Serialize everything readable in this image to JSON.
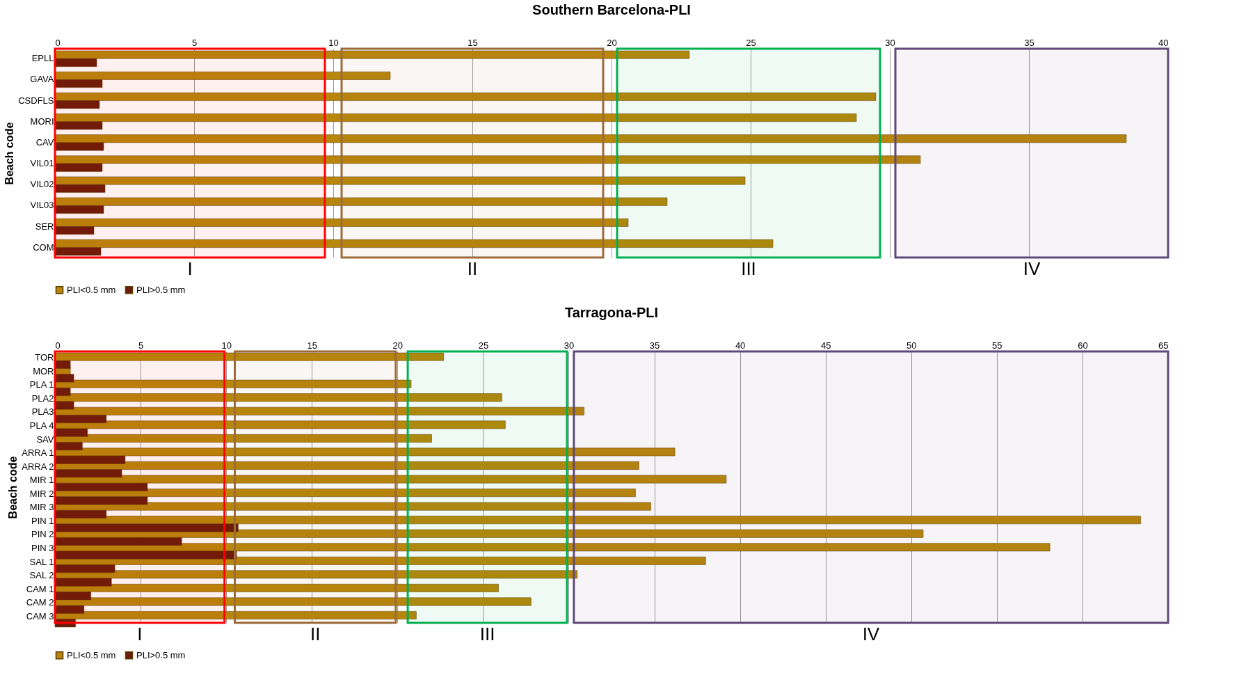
{
  "chart_data": [
    {
      "type": "bar",
      "orientation": "horizontal",
      "title": "Southern Barcelona-PLI",
      "ylabel": "Beach code",
      "categories": [
        "EPLL",
        "GAVA",
        "CSDFLS",
        "MORI",
        "CAV",
        "VIL01",
        "VIL02",
        "VIL03",
        "SER",
        "COM"
      ],
      "series": [
        {
          "name": "PLI<0.5 mm",
          "color": "#b8860b",
          "values": [
            22.8,
            12.05,
            29.5,
            28.8,
            38.5,
            31.1,
            24.8,
            22.0,
            20.6,
            25.8
          ]
        },
        {
          "name": "PLI>0.5 mm",
          "color": "#6b1d0a",
          "values": [
            1.5,
            1.7,
            1.6,
            1.7,
            1.75,
            1.7,
            1.8,
            1.75,
            1.4,
            1.65
          ]
        }
      ],
      "xlim": [
        0,
        40
      ],
      "xticks": [
        0,
        5,
        10,
        15,
        20,
        25,
        30,
        35,
        40
      ],
      "grid": "x",
      "legend": "bottom",
      "bands": [
        {
          "axis": "x",
          "from": 0,
          "to": 9.7,
          "label": "I",
          "color": "#ff0000"
        },
        {
          "axis": "x",
          "from": 10.3,
          "to": 19.7,
          "label": "II",
          "color": "#9c6b3a"
        },
        {
          "axis": "x",
          "from": 20.2,
          "to": 29.65,
          "label": "III",
          "color": "#00b050"
        },
        {
          "axis": "x",
          "from": 30.2,
          "to": 40,
          "label": "IV",
          "color": "#5f497a"
        }
      ]
    },
    {
      "type": "bar",
      "orientation": "horizontal",
      "title": "Tarragona-PLI",
      "ylabel": "Beach code",
      "categories": [
        "TOR",
        "MOR",
        "PLA 1",
        "PLA2",
        "PLA3",
        "PLA 4",
        "SAV",
        "ARRA 1",
        "ARRA 2",
        "MIR 1",
        "MIR 2",
        "MIR 3",
        "PIN 1",
        "PIN 2",
        "PIN 3",
        "SAL 1",
        "SAL 2",
        "CAM 1",
        "CAM 2",
        "CAM 3"
      ],
      "series": [
        {
          "name": "PLI<0.5 mm",
          "color": "#b8860b",
          "values": [
            22.7,
            0.9,
            20.8,
            26.1,
            30.9,
            26.3,
            22.0,
            36.2,
            34.1,
            39.2,
            33.9,
            34.8,
            63.4,
            50.7,
            58.1,
            38.0,
            30.5,
            25.9,
            27.8,
            21.1
          ]
        },
        {
          "name": "PLI>0.5 mm",
          "color": "#6b1d0a",
          "values": [
            0.9,
            1.1,
            0.9,
            1.1,
            3.0,
            1.9,
            1.6,
            4.1,
            3.9,
            5.4,
            5.4,
            3.0,
            10.7,
            7.4,
            10.6,
            3.5,
            3.3,
            2.1,
            1.7,
            1.2
          ]
        }
      ],
      "xlim": [
        0,
        65
      ],
      "xticks": [
        0,
        5,
        10,
        15,
        20,
        25,
        30,
        35,
        40,
        45,
        50,
        55,
        60,
        65
      ],
      "grid": "x",
      "legend": "bottom",
      "bands": [
        {
          "axis": "x",
          "from": 0,
          "to": 9.9,
          "label": "I",
          "color": "#ff0000"
        },
        {
          "axis": "x",
          "from": 10.5,
          "to": 19.9,
          "label": "II",
          "color": "#9c6b3a"
        },
        {
          "axis": "x",
          "from": 20.6,
          "to": 29.9,
          "label": "III",
          "color": "#00b050"
        },
        {
          "axis": "x",
          "from": 30.3,
          "to": 65,
          "label": "IV",
          "color": "#5f497a"
        }
      ]
    }
  ]
}
